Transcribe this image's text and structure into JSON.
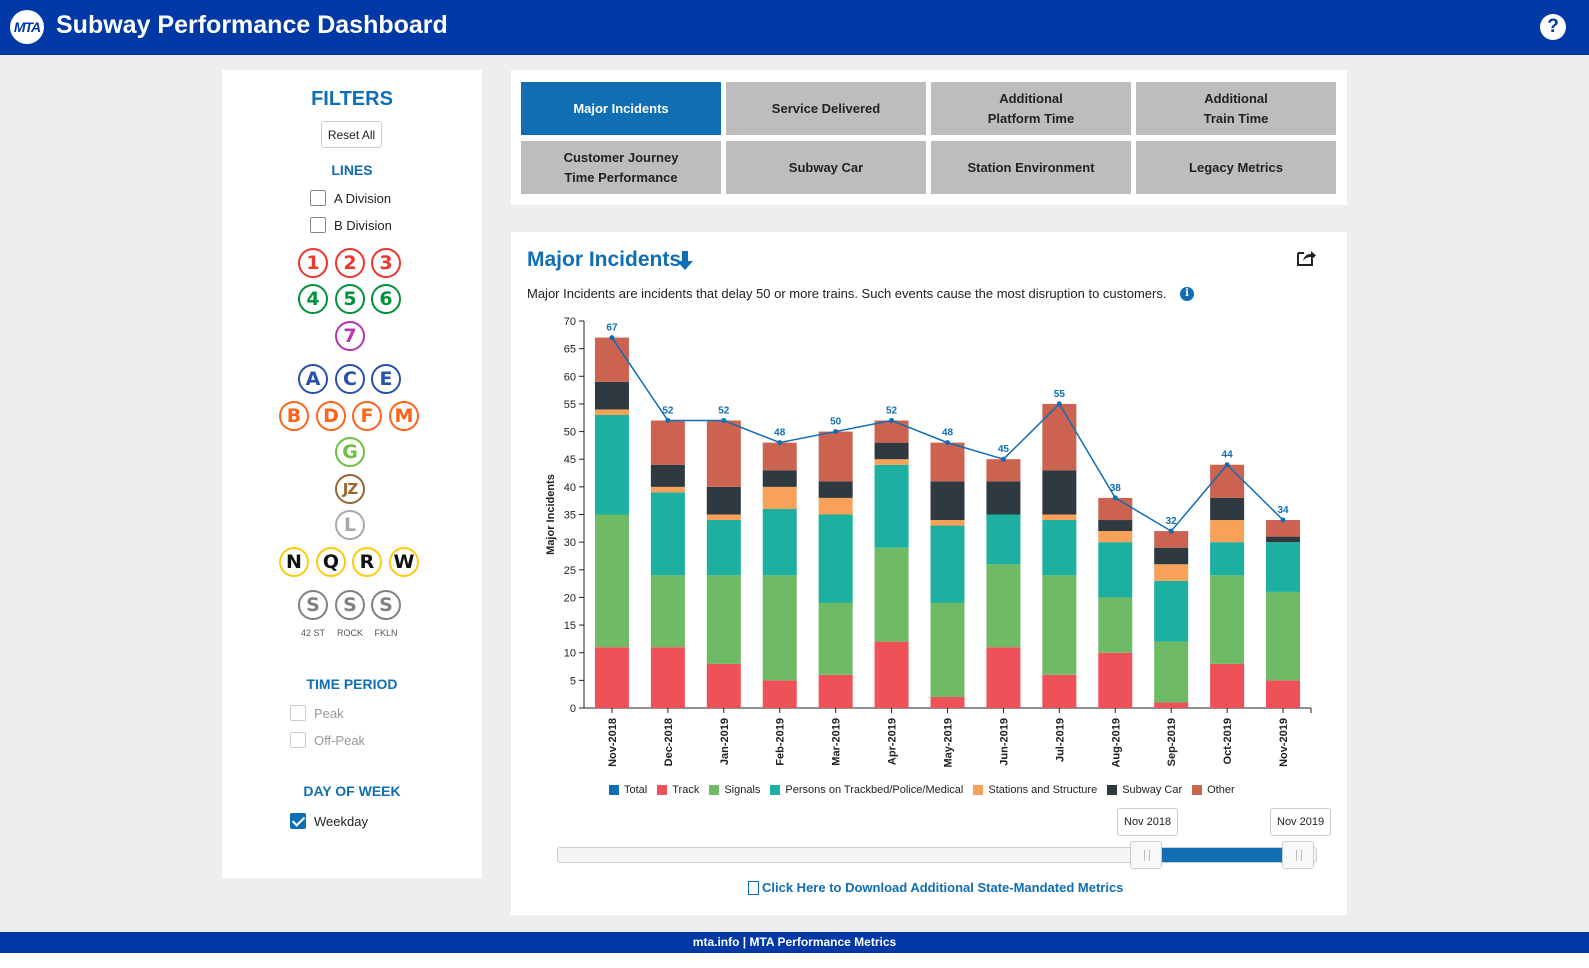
{
  "header": {
    "logo_text": "MTA",
    "title": "Subway Performance Dashboard",
    "help_label": "?"
  },
  "filters": {
    "title": "FILTERS",
    "reset_label": "Reset All",
    "lines_title": "LINES",
    "divisions": [
      {
        "label": "A Division",
        "checked": false
      },
      {
        "label": "B Division",
        "checked": false
      }
    ],
    "routes": [
      {
        "label": "1",
        "color": "#ee352e"
      },
      {
        "label": "2",
        "color": "#ee352e"
      },
      {
        "label": "3",
        "color": "#ee352e"
      },
      {
        "label": "4",
        "color": "#00933c"
      },
      {
        "label": "5",
        "color": "#00933c"
      },
      {
        "label": "6",
        "color": "#00933c"
      },
      {
        "label": "7",
        "color": "#b933ad"
      },
      {
        "label": "A",
        "color": "#2850ad"
      },
      {
        "label": "C",
        "color": "#2850ad"
      },
      {
        "label": "E",
        "color": "#2850ad"
      },
      {
        "label": "B",
        "color": "#ff6319"
      },
      {
        "label": "D",
        "color": "#ff6319"
      },
      {
        "label": "F",
        "color": "#ff6319"
      },
      {
        "label": "M",
        "color": "#ff6319"
      },
      {
        "label": "G",
        "color": "#6cbe45"
      },
      {
        "label": "JZ",
        "color": "#996633"
      },
      {
        "label": "L",
        "color": "#a7a9ac"
      },
      {
        "label": "N",
        "color": "#fccc0a"
      },
      {
        "label": "Q",
        "color": "#fccc0a"
      },
      {
        "label": "R",
        "color": "#fccc0a"
      },
      {
        "label": "W",
        "color": "#fccc0a"
      },
      {
        "label": "S",
        "color": "#808183",
        "sublabel": "42 ST"
      },
      {
        "label": "S",
        "color": "#808183",
        "sublabel": "ROCK"
      },
      {
        "label": "S",
        "color": "#808183",
        "sublabel": "FKLN"
      }
    ],
    "time_period_title": "TIME PERIOD",
    "time_periods": [
      {
        "label": "Peak",
        "checked": false
      },
      {
        "label": "Off-Peak",
        "checked": false
      }
    ],
    "day_of_week_title": "DAY OF WEEK",
    "days": [
      {
        "label": "Weekday",
        "checked": true
      }
    ]
  },
  "tabs": [
    {
      "label": "Major Incidents",
      "active": true
    },
    {
      "label": "Service Delivered",
      "active": false
    },
    {
      "label": "Additional\nPlatform Time",
      "active": false
    },
    {
      "label": "Additional\nTrain Time",
      "active": false
    },
    {
      "label": "Customer Journey\nTime Performance",
      "active": false
    },
    {
      "label": "Subway Car",
      "active": false
    },
    {
      "label": "Station Environment",
      "active": false
    },
    {
      "label": "Legacy Metrics",
      "active": false
    }
  ],
  "chart_panel": {
    "title": "Major Incidents",
    "description": "Major Incidents are incidents that delay 50 or more trains. Such events cause the most disruption to customers."
  },
  "chart_data": {
    "type": "bar",
    "stacked": true,
    "ylabel": "Major Incidents",
    "ylim": [
      0,
      70
    ],
    "ytick_step": 5,
    "categories": [
      "Nov-2018",
      "Dec-2018",
      "Jan-2019",
      "Feb-2019",
      "Mar-2019",
      "Apr-2019",
      "May-2019",
      "Jun-2019",
      "Jul-2019",
      "Aug-2019",
      "Sep-2019",
      "Oct-2019",
      "Nov-2019"
    ],
    "series": [
      {
        "name": "Track",
        "color": "#ef5159",
        "values": [
          11,
          11,
          8,
          5,
          6,
          12,
          2,
          11,
          6,
          10,
          1,
          8,
          5
        ]
      },
      {
        "name": "Signals",
        "color": "#6fba64",
        "values": [
          24,
          13,
          16,
          19,
          13,
          17,
          17,
          15,
          18,
          10,
          11,
          16,
          16
        ]
      },
      {
        "name": "Persons on Trackbed/Police/Medical",
        "color": "#1db0a1",
        "values": [
          18,
          15,
          10,
          12,
          16,
          15,
          14,
          9,
          10,
          10,
          11,
          6,
          9
        ]
      },
      {
        "name": "Stations and Structure",
        "color": "#f8a259",
        "values": [
          1,
          1,
          1,
          4,
          3,
          1,
          1,
          0,
          1,
          2,
          3,
          4,
          0
        ]
      },
      {
        "name": "Subway Car",
        "color": "#2e3a40",
        "values": [
          5,
          4,
          5,
          3,
          3,
          3,
          7,
          6,
          8,
          2,
          3,
          4,
          1
        ]
      },
      {
        "name": "Other",
        "color": "#cc6351",
        "values": [
          8,
          8,
          12,
          5,
          9,
          4,
          7,
          4,
          12,
          4,
          3,
          6,
          3
        ]
      }
    ],
    "total": {
      "name": "Total",
      "color": "#0f6eb4",
      "values": [
        67,
        52,
        52,
        48,
        50,
        52,
        48,
        45,
        55,
        38,
        32,
        44,
        34
      ]
    },
    "legend_order": [
      "Total",
      "Track",
      "Signals",
      "Persons on Trackbed/Police/Medical",
      "Stations and Structure",
      "Subway Car",
      "Other"
    ],
    "legend_placement": "bottom",
    "grid": false
  },
  "range_slider": {
    "start_label": "Nov 2018",
    "end_label": "Nov 2019",
    "selected_start_fraction": 0.775,
    "selected_end_fraction": 0.975
  },
  "download_link": "Click Here to Download Additional State-Mandated Metrics",
  "footer": {
    "text": "mta.info  |  MTA Performance Metrics"
  }
}
